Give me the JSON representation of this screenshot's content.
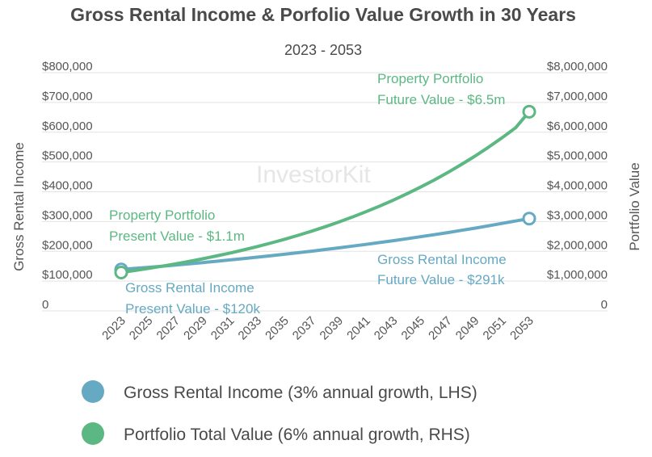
{
  "chart_data": {
    "type": "line",
    "title": "Gross Rental Income & Porfolio Value Growth in 30 Years",
    "subtitle": "2023 - 2053",
    "ylabel_left": "Gross Rental Income",
    "ylabel_right": "Portfolio Value",
    "watermark": "InvestorKit",
    "x": [
      2023,
      2024,
      2025,
      2026,
      2027,
      2028,
      2029,
      2030,
      2031,
      2032,
      2033,
      2034,
      2035,
      2036,
      2037,
      2038,
      2039,
      2040,
      2041,
      2042,
      2043,
      2044,
      2045,
      2046,
      2047,
      2048,
      2049,
      2050,
      2051,
      2052,
      2053
    ],
    "x_ticks": [
      "2023",
      "2025",
      "2027",
      "2029",
      "2031",
      "2033",
      "2035",
      "2037",
      "2039",
      "2041",
      "2043",
      "2045",
      "2047",
      "2049",
      "2051",
      "2053"
    ],
    "y_left_ticks": [
      "0",
      "$100,000",
      "$200,000",
      "$300,000",
      "$400,000",
      "$500,000",
      "$600,000",
      "$700,000",
      "$800,000"
    ],
    "y_right_ticks": [
      "0",
      "$1,000,000",
      "$2,000,000",
      "$3,000,000",
      "$4,000,000",
      "$5,000,000",
      "$6,000,000",
      "$7,000,000",
      "$8,000,000"
    ],
    "ylim_left": [
      0,
      800000
    ],
    "ylim_right": [
      0,
      8000000
    ],
    "grid": "horizontal",
    "series": [
      {
        "name": "Gross Rental Income (3% annual growth, LHS)",
        "axis": "left",
        "color": "#66a9c2",
        "values": [
          120000,
          123600,
          127300,
          131100,
          135100,
          139100,
          143300,
          147600,
          152000,
          156600,
          161300,
          166100,
          171100,
          176200,
          181500,
          187000,
          192600,
          198400,
          204300,
          210400,
          216700,
          223200,
          229900,
          236800,
          243900,
          251300,
          258800,
          266600,
          274600,
          282800,
          291000
        ]
      },
      {
        "name": "Portfolio Total Value (6% annual growth, RHS)",
        "axis": "right",
        "color": "#5cb883",
        "values": [
          1100000,
          1166000,
          1236000,
          1310000,
          1389000,
          1472000,
          1560000,
          1654000,
          1753000,
          1858000,
          1970000,
          2088000,
          2213000,
          2346000,
          2487000,
          2636000,
          2794000,
          2962000,
          3139000,
          3328000,
          3528000,
          3739000,
          3964000,
          4202000,
          4454000,
          4721000,
          5004000,
          5304000,
          5623000,
          5960000,
          6500000
        ]
      }
    ],
    "annotations": {
      "portfolio_future": [
        "Property Portfolio",
        "Future Value - $6.5m"
      ],
      "portfolio_present": [
        "Property Portfolio",
        "Present Value - $1.1m"
      ],
      "income_future": [
        "Gross Rental Income",
        "Future Value - $291k"
      ],
      "income_present": [
        "Gross Rental Income",
        "Present Value - $120k"
      ]
    },
    "legend_position": "bottom"
  }
}
